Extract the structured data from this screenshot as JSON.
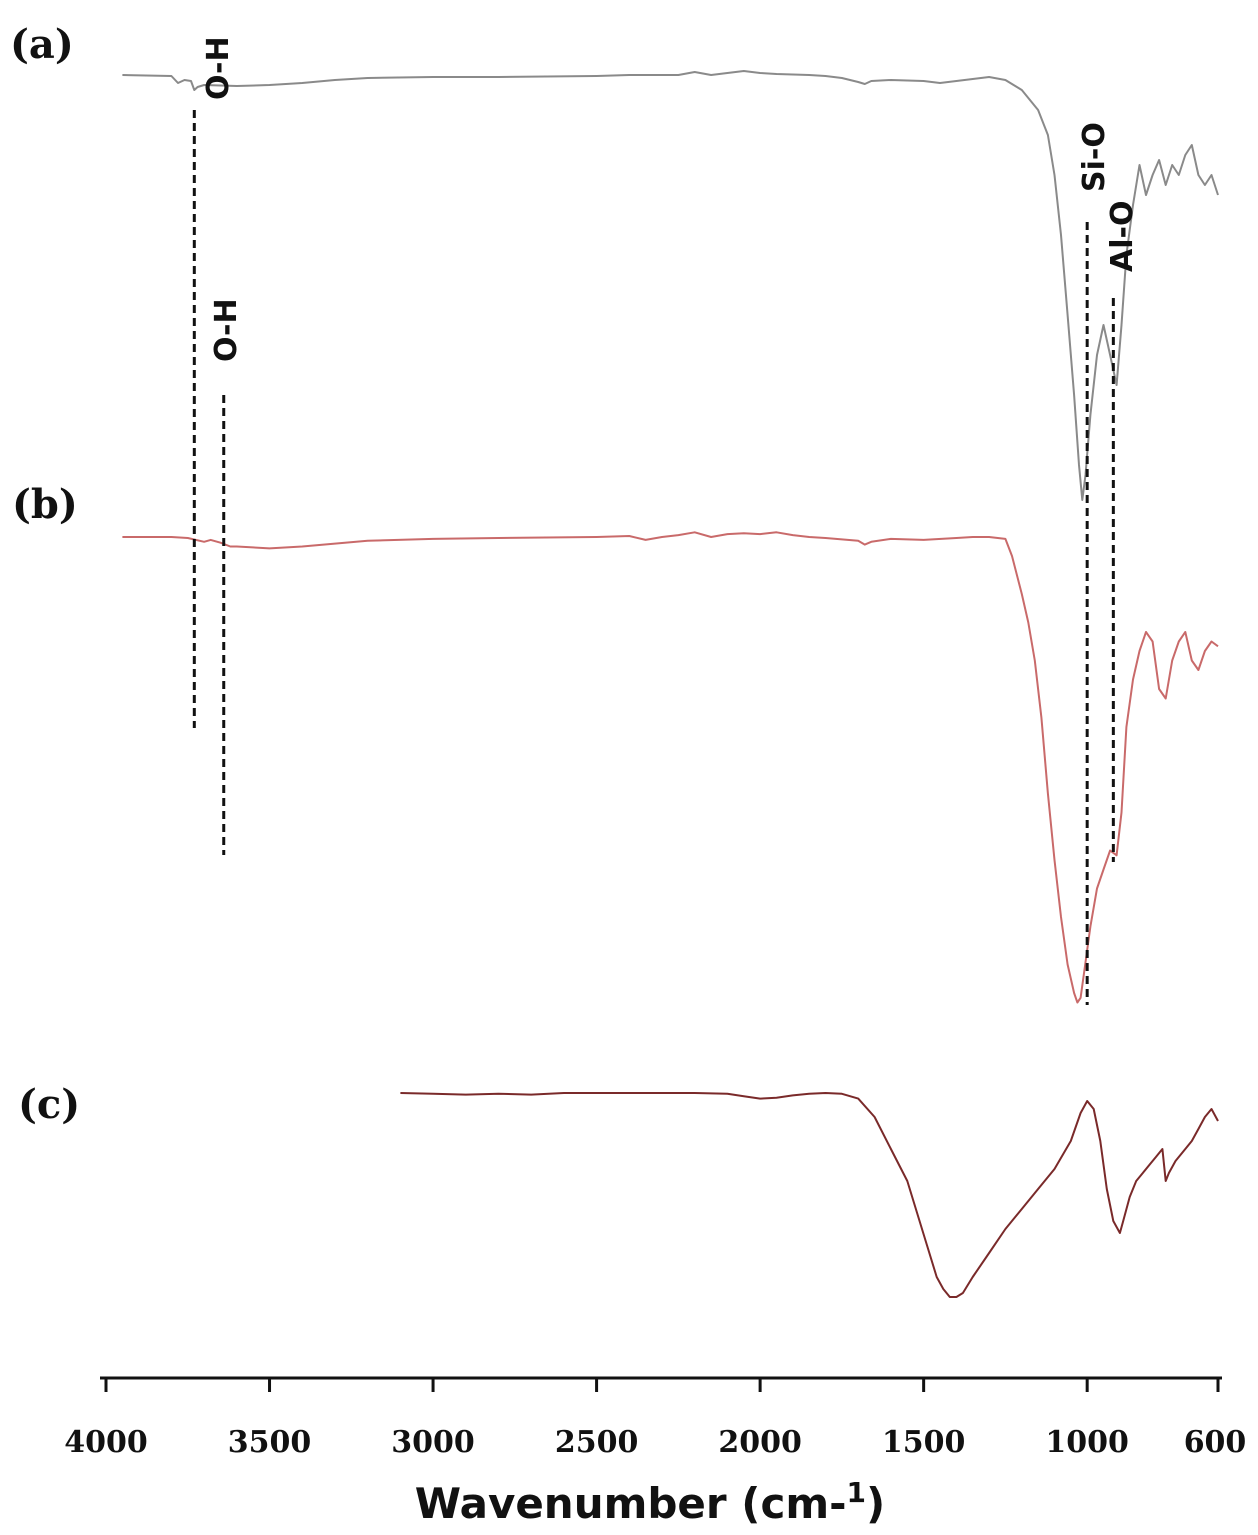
{
  "chart_data": {
    "type": "line",
    "title": "",
    "xlabel": "Wavenumber (cm-1)",
    "xlabel_main": "Wavenumber (cm-",
    "xlabel_sup": "1",
    "xlabel_close": ")",
    "ylabel": "",
    "xlim": [
      4000,
      600
    ],
    "x_reversed": true,
    "ticks": [
      {
        "value": 4000,
        "label": "4000"
      },
      {
        "value": 3500,
        "label": "3500"
      },
      {
        "value": 3000,
        "label": "3000"
      },
      {
        "value": 2500,
        "label": "2500"
      },
      {
        "value": 2000,
        "label": "2000"
      },
      {
        "value": 1500,
        "label": "1500"
      },
      {
        "value": 1000,
        "label": "1000"
      },
      {
        "value": 600,
        "label": "600"
      }
    ],
    "grid": false,
    "legend": "none",
    "series": [
      {
        "label": "(a)",
        "color": "#8a8a8a",
        "points": [
          [
            3950,
            0.0
          ],
          [
            3800,
            0.01
          ],
          [
            3780,
            0.08
          ],
          [
            3760,
            0.05
          ],
          [
            3740,
            0.06
          ],
          [
            3730,
            0.15
          ],
          [
            3720,
            0.12
          ],
          [
            3700,
            0.1
          ],
          [
            3600,
            0.11
          ],
          [
            3500,
            0.1
          ],
          [
            3400,
            0.08
          ],
          [
            3300,
            0.05
          ],
          [
            3200,
            0.03
          ],
          [
            3000,
            0.02
          ],
          [
            2800,
            0.02
          ],
          [
            2500,
            0.01
          ],
          [
            2400,
            0.0
          ],
          [
            2250,
            0.0
          ],
          [
            2200,
            -0.03
          ],
          [
            2150,
            0.0
          ],
          [
            2100,
            -0.02
          ],
          [
            2050,
            -0.04
          ],
          [
            2000,
            -0.02
          ],
          [
            1950,
            -0.01
          ],
          [
            1850,
            0.0
          ],
          [
            1800,
            0.01
          ],
          [
            1750,
            0.03
          ],
          [
            1700,
            0.07
          ],
          [
            1680,
            0.09
          ],
          [
            1660,
            0.06
          ],
          [
            1600,
            0.05
          ],
          [
            1500,
            0.06
          ],
          [
            1450,
            0.08
          ],
          [
            1400,
            0.06
          ],
          [
            1300,
            0.02
          ],
          [
            1250,
            0.05
          ],
          [
            1200,
            0.15
          ],
          [
            1150,
            0.35
          ],
          [
            1120,
            0.6
          ],
          [
            1100,
            1.0
          ],
          [
            1080,
            1.6
          ],
          [
            1060,
            2.4
          ],
          [
            1040,
            3.2
          ],
          [
            1025,
            3.9
          ],
          [
            1015,
            4.25
          ],
          [
            1005,
            4.0
          ],
          [
            990,
            3.4
          ],
          [
            970,
            2.8
          ],
          [
            950,
            2.5
          ],
          [
            930,
            2.8
          ],
          [
            910,
            3.1
          ],
          [
            895,
            2.5
          ],
          [
            880,
            1.8
          ],
          [
            860,
            1.3
          ],
          [
            840,
            0.9
          ],
          [
            820,
            1.2
          ],
          [
            800,
            1.0
          ],
          [
            780,
            0.85
          ],
          [
            760,
            1.1
          ],
          [
            740,
            0.9
          ],
          [
            720,
            1.0
          ],
          [
            700,
            0.8
          ],
          [
            680,
            0.7
          ],
          [
            660,
            1.0
          ],
          [
            640,
            1.1
          ],
          [
            620,
            1.0
          ],
          [
            600,
            1.2
          ]
        ]
      },
      {
        "label": "(b)",
        "color": "#c96a6a",
        "points": [
          [
            3950,
            0.0
          ],
          [
            3800,
            0.0
          ],
          [
            3750,
            0.01
          ],
          [
            3700,
            0.05
          ],
          [
            3680,
            0.03
          ],
          [
            3650,
            0.06
          ],
          [
            3620,
            0.1
          ],
          [
            3600,
            0.1
          ],
          [
            3500,
            0.12
          ],
          [
            3400,
            0.1
          ],
          [
            3300,
            0.07
          ],
          [
            3200,
            0.04
          ],
          [
            3000,
            0.02
          ],
          [
            2800,
            0.01
          ],
          [
            2500,
            0.0
          ],
          [
            2400,
            -0.01
          ],
          [
            2350,
            0.03
          ],
          [
            2300,
            0.0
          ],
          [
            2250,
            -0.02
          ],
          [
            2200,
            -0.05
          ],
          [
            2150,
            0.0
          ],
          [
            2100,
            -0.03
          ],
          [
            2050,
            -0.04
          ],
          [
            2000,
            -0.03
          ],
          [
            1950,
            -0.05
          ],
          [
            1900,
            -0.02
          ],
          [
            1850,
            0.0
          ],
          [
            1800,
            0.01
          ],
          [
            1700,
            0.04
          ],
          [
            1680,
            0.08
          ],
          [
            1660,
            0.05
          ],
          [
            1600,
            0.02
          ],
          [
            1500,
            0.03
          ],
          [
            1400,
            0.01
          ],
          [
            1350,
            0.0
          ],
          [
            1300,
            0.0
          ],
          [
            1250,
            0.02
          ],
          [
            1230,
            0.2
          ],
          [
            1200,
            0.6
          ],
          [
            1180,
            0.9
          ],
          [
            1160,
            1.3
          ],
          [
            1140,
            1.9
          ],
          [
            1120,
            2.7
          ],
          [
            1100,
            3.4
          ],
          [
            1080,
            4.0
          ],
          [
            1060,
            4.5
          ],
          [
            1040,
            4.8
          ],
          [
            1030,
            4.9
          ],
          [
            1020,
            4.85
          ],
          [
            1010,
            4.6
          ],
          [
            990,
            4.1
          ],
          [
            970,
            3.7
          ],
          [
            950,
            3.5
          ],
          [
            930,
            3.3
          ],
          [
            910,
            3.35
          ],
          [
            895,
            2.9
          ],
          [
            880,
            2.0
          ],
          [
            860,
            1.5
          ],
          [
            840,
            1.2
          ],
          [
            820,
            1.0
          ],
          [
            800,
            1.1
          ],
          [
            780,
            1.6
          ],
          [
            760,
            1.7
          ],
          [
            740,
            1.3
          ],
          [
            720,
            1.1
          ],
          [
            700,
            1.0
          ],
          [
            680,
            1.3
          ],
          [
            660,
            1.4
          ],
          [
            640,
            1.2
          ],
          [
            620,
            1.1
          ],
          [
            600,
            1.15
          ]
        ]
      },
      {
        "label": "(c)",
        "color": "#7a2a2a",
        "points": [
          [
            3100,
            0.0
          ],
          [
            3000,
            0.01
          ],
          [
            2900,
            0.02
          ],
          [
            2800,
            0.01
          ],
          [
            2700,
            0.02
          ],
          [
            2600,
            0.0
          ],
          [
            2500,
            0.0
          ],
          [
            2400,
            0.0
          ],
          [
            2300,
            0.0
          ],
          [
            2200,
            0.0
          ],
          [
            2100,
            0.01
          ],
          [
            2050,
            0.04
          ],
          [
            2000,
            0.07
          ],
          [
            1950,
            0.06
          ],
          [
            1900,
            0.03
          ],
          [
            1850,
            0.01
          ],
          [
            1800,
            0.0
          ],
          [
            1750,
            0.01
          ],
          [
            1700,
            0.07
          ],
          [
            1650,
            0.3
          ],
          [
            1600,
            0.7
          ],
          [
            1550,
            1.1
          ],
          [
            1520,
            1.5
          ],
          [
            1490,
            1.9
          ],
          [
            1460,
            2.3
          ],
          [
            1440,
            2.45
          ],
          [
            1420,
            2.55
          ],
          [
            1400,
            2.55
          ],
          [
            1380,
            2.5
          ],
          [
            1350,
            2.3
          ],
          [
            1300,
            2.0
          ],
          [
            1250,
            1.7
          ],
          [
            1200,
            1.45
          ],
          [
            1150,
            1.2
          ],
          [
            1100,
            0.95
          ],
          [
            1050,
            0.6
          ],
          [
            1020,
            0.25
          ],
          [
            1000,
            0.1
          ],
          [
            980,
            0.2
          ],
          [
            960,
            0.6
          ],
          [
            940,
            1.2
          ],
          [
            920,
            1.6
          ],
          [
            900,
            1.75
          ],
          [
            890,
            1.6
          ],
          [
            870,
            1.3
          ],
          [
            850,
            1.1
          ],
          [
            830,
            1.0
          ],
          [
            810,
            0.9
          ],
          [
            790,
            0.8
          ],
          [
            770,
            0.7
          ],
          [
            760,
            1.1
          ],
          [
            750,
            1.0
          ],
          [
            730,
            0.85
          ],
          [
            700,
            0.7
          ],
          [
            680,
            0.6
          ],
          [
            660,
            0.45
          ],
          [
            640,
            0.3
          ],
          [
            620,
            0.2
          ],
          [
            600,
            0.35
          ]
        ]
      }
    ],
    "annotations": [
      {
        "text": "O-H",
        "x": 3730
      },
      {
        "text": "O-H",
        "x": 3640
      },
      {
        "text": "Si-O",
        "x": 1000
      },
      {
        "text": "Al-O",
        "x": 920
      }
    ]
  }
}
